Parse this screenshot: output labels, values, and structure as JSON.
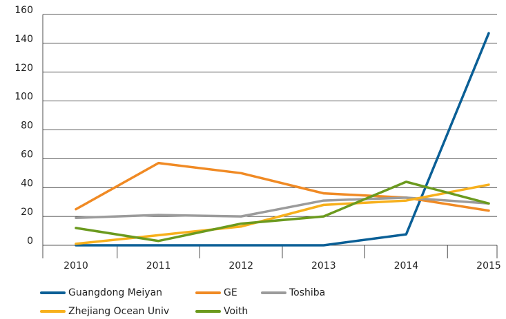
{
  "chart_data": {
    "type": "line",
    "categories": [
      "2010",
      "2011",
      "2012",
      "2013",
      "2014",
      "2015"
    ],
    "series": [
      {
        "name": "Guangdong Meiyan",
        "color": "#0a5f96",
        "values": [
          0,
          0,
          0,
          0,
          7.6,
          147
        ]
      },
      {
        "name": "GE",
        "color": "#f08a24",
        "values": [
          25,
          57,
          50,
          36,
          33,
          24
        ]
      },
      {
        "name": "Toshiba",
        "color": "#9b9b9b",
        "values": [
          19,
          21,
          20,
          31,
          33,
          29
        ]
      },
      {
        "name": "Zhejiang Ocean Univ",
        "color": "#f7b01c",
        "values": [
          1,
          7,
          13,
          28,
          31,
          42
        ]
      },
      {
        "name": "Voith",
        "color": "#6b9a1e",
        "values": [
          12,
          3,
          15,
          20,
          44,
          29
        ]
      }
    ],
    "ylim": [
      0,
      160
    ],
    "yticks": [
      0,
      20,
      40,
      60,
      80,
      100,
      120,
      140,
      160
    ],
    "grid": true
  }
}
